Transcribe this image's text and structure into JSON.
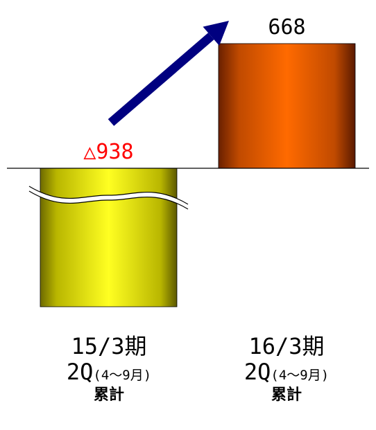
{
  "chart_data": {
    "type": "bar",
    "categories": [
      {
        "period": "15/3期",
        "quarter": "2Q",
        "months": "(4～9月)",
        "cumulative": "累計"
      },
      {
        "period": "16/3期",
        "quarter": "2Q",
        "months": "(4～9月)",
        "cumulative": "累計"
      }
    ],
    "values": [
      -938,
      668
    ],
    "value_labels": [
      "△938",
      "668"
    ],
    "axis_break_on_first_bar": true,
    "trend_arrow": true,
    "colors": {
      "bar_negative": "#e8e800",
      "bar_positive": "#ff6a00",
      "negative_label": "#ff0000",
      "positive_label": "#000000",
      "arrow": "#000080",
      "baseline": "#000000"
    }
  }
}
